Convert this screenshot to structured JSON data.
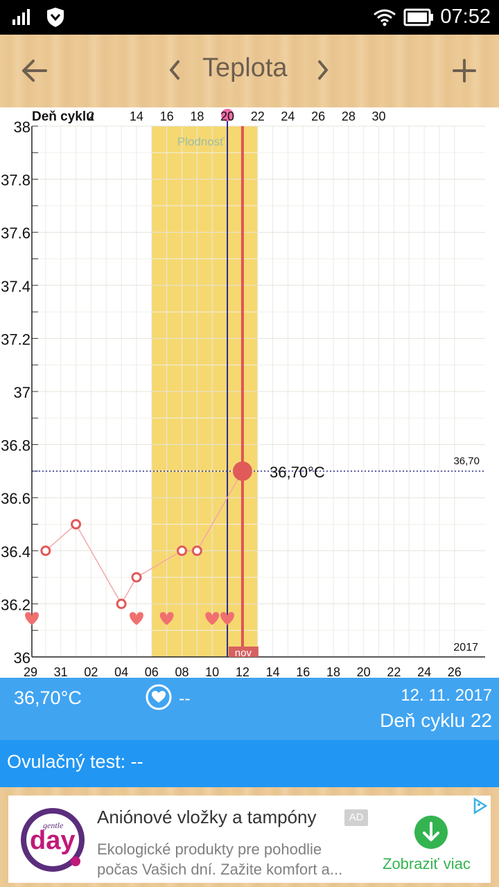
{
  "status_bar": {
    "time": "07:52"
  },
  "app_bar": {
    "title": "Teplota"
  },
  "chart": {
    "cycle_label": "Deň cyklu",
    "cycle_ticks": [
      "2",
      "14",
      "16",
      "18",
      "20",
      "22",
      "24",
      "26",
      "28",
      "30"
    ],
    "fertility_label": "Plodnosť",
    "new_moon_label": "nov",
    "year_label": "2017",
    "ref_line_value": "36,70",
    "current_label": "36,70°C",
    "y_ticks": [
      "38",
      "37.8",
      "37.6",
      "37.4",
      "37.2",
      "37",
      "36.8",
      "36.6",
      "36.4",
      "36.2",
      "36"
    ],
    "x_ticks": [
      "29",
      "31",
      "02",
      "04",
      "06",
      "08",
      "10",
      "12",
      "14",
      "16",
      "18",
      "20",
      "22",
      "24",
      "26"
    ]
  },
  "chart_data": {
    "type": "line",
    "ylim": [
      36,
      38
    ],
    "x_dates": [
      "29.10",
      "30.10",
      "31.10",
      "01.11",
      "02.11",
      "03.11",
      "04.11",
      "05.11",
      "06.11",
      "07.11",
      "08.11",
      "09.11",
      "10.11",
      "11.11",
      "12.11",
      "13.11",
      "14.11",
      "15.11",
      "16.11",
      "17.11",
      "18.11",
      "19.11",
      "20.11",
      "21.11",
      "22.11",
      "23.11",
      "24.11",
      "25.11",
      "26.11"
    ],
    "series": [
      {
        "x": [
          "30.10",
          "01.11",
          "04.11",
          "05.11",
          "08.11",
          "09.11",
          "12.11"
        ],
        "values": [
          36.4,
          36.5,
          36.2,
          36.3,
          36.4,
          36.4,
          36.7
        ]
      }
    ],
    "highlight_point": {
      "x": "12.11",
      "value": 36.7
    },
    "reference_line": 36.7,
    "fertile_window": [
      "06.11",
      "12.11"
    ],
    "ovulation_day": "11.11",
    "current_day": "12.11",
    "intercourse_days": [
      "28.10",
      "05.11",
      "07.11",
      "10.11",
      "11.11"
    ],
    "grid": true
  },
  "info": {
    "temperature": "36,70°C",
    "intercourse_value": "--",
    "date": "12. 11. 2017",
    "cycle_day": "Deň cyklu 22"
  },
  "ovulation": {
    "text": "Ovulačný test: --"
  },
  "ad": {
    "logo_small": "gentle",
    "logo_big": "day",
    "title": "Aniónové vložky a tampóny",
    "badge": "AD",
    "line1": "Ekologické produkty pre pohodlie",
    "line2": "počas Vašich dní. Zažite komfort a...",
    "cta": "Zobraziť viac"
  },
  "colors": {
    "fertile": "#f6d871",
    "ovulation_line": "#2a2a8a",
    "today_line": "#de5555",
    "temp_marker": "#e05a5a",
    "info_bg": "#41a4f1",
    "ovu_bg": "#2196f3",
    "ad_green": "#34b450"
  }
}
